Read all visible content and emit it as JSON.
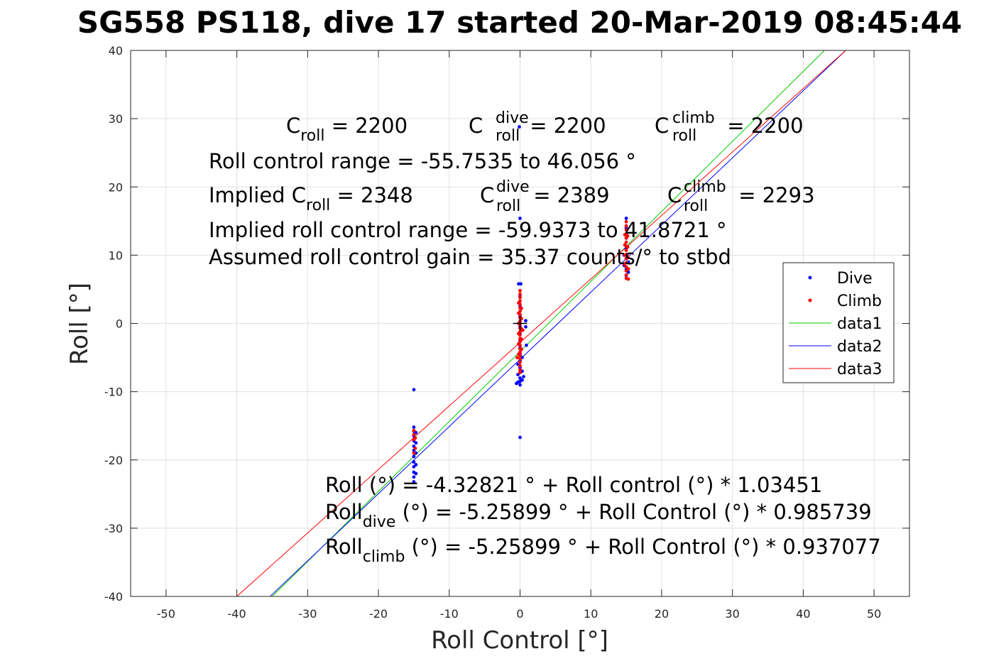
{
  "chart_data": {
    "type": "scatter",
    "title": "SG558 PS118, dive 17 started 20-Mar-2019 08:45:44",
    "xlabel": "Roll Control [°]",
    "ylabel": "Roll [°]",
    "xlim": [
      -55,
      55
    ],
    "ylim": [
      -40,
      40
    ],
    "xticks": [
      -50,
      -40,
      -30,
      -20,
      -10,
      0,
      10,
      20,
      30,
      40,
      50
    ],
    "yticks": [
      -40,
      -30,
      -20,
      -10,
      0,
      10,
      20,
      30,
      40
    ],
    "xtick_labels": [
      "-50",
      "-40",
      "-30",
      "-20",
      "-10",
      "0",
      "10",
      "20",
      "30",
      "40",
      "50"
    ],
    "ytick_labels": [
      "-40",
      "-30",
      "-20",
      "-10",
      "0",
      "10",
      "20",
      "30",
      "40"
    ],
    "grid": true,
    "legend_placement": "right",
    "colors": {
      "dive": "#0000ff",
      "climb": "#ff0000",
      "data1": "#00cc00",
      "data2": "#0000ff",
      "data3": "#ff0000"
    },
    "scatter_series": [
      {
        "name": "Dive",
        "color": "#0000ff",
        "points": [
          [
            -15,
            -9.7
          ],
          [
            -15,
            -15.2
          ],
          [
            -15,
            -15.8
          ],
          [
            -15,
            -16.5
          ],
          [
            -15,
            -17.2
          ],
          [
            -15,
            -18.0
          ],
          [
            -15,
            -18.6
          ],
          [
            -15,
            -19.5
          ],
          [
            -15,
            -20.3
          ],
          [
            -15,
            -21.0
          ],
          [
            -15,
            -21.8
          ],
          [
            -15,
            -22.5
          ],
          [
            -15,
            -23.2
          ],
          [
            -14.7,
            -16.0
          ],
          [
            -14.7,
            -17.5
          ],
          [
            -14.7,
            -19.0
          ],
          [
            -14.7,
            -20.7
          ],
          [
            -14.7,
            -22.0
          ],
          [
            -0.2,
            5.8
          ],
          [
            0.1,
            5.8
          ],
          [
            0,
            4.0
          ],
          [
            0,
            2.5
          ],
          [
            0,
            1.0
          ],
          [
            0,
            -0.5
          ],
          [
            0,
            -1.5
          ],
          [
            0,
            -2.5
          ],
          [
            0,
            -3.5
          ],
          [
            0,
            -4.5
          ],
          [
            0,
            -5.5
          ],
          [
            0,
            -6.5
          ],
          [
            0,
            -7.2
          ],
          [
            0,
            -8.0
          ],
          [
            0,
            -8.5
          ],
          [
            0,
            -9.0
          ],
          [
            -0.3,
            -6.0
          ],
          [
            -0.3,
            -7.5
          ],
          [
            -0.3,
            -8.6
          ],
          [
            0.3,
            -5.0
          ],
          [
            0.3,
            -7.0
          ],
          [
            0.3,
            -8.3
          ],
          [
            -0.5,
            -8.8
          ],
          [
            0.5,
            -7.8
          ],
          [
            0,
            15.4
          ],
          [
            0,
            -16.7
          ],
          [
            -0.1,
            28.8
          ],
          [
            0.8,
            -0.5
          ],
          [
            0.9,
            -3.2
          ],
          [
            0.8,
            0.4
          ],
          [
            15,
            15.4
          ],
          [
            15,
            14.0
          ],
          [
            15,
            12.5
          ],
          [
            15,
            11.0
          ],
          [
            15,
            9.5
          ],
          [
            15,
            8.0
          ],
          [
            15,
            7.0
          ],
          [
            14.7,
            10.0
          ],
          [
            14.7,
            8.5
          ],
          [
            15.3,
            9.0
          ],
          [
            15.3,
            7.5
          ]
        ]
      },
      {
        "name": "Climb",
        "color": "#ff0000",
        "points": [
          [
            -15,
            -15.7
          ],
          [
            -15,
            -16.3
          ],
          [
            -15,
            -17.0
          ],
          [
            -14.8,
            -16.8
          ],
          [
            -14.8,
            -18.3
          ],
          [
            -15,
            -19.0
          ],
          [
            0,
            4.8
          ],
          [
            0,
            4.3
          ],
          [
            0,
            3.8
          ],
          [
            0,
            3.3
          ],
          [
            0,
            2.8
          ],
          [
            0,
            2.3
          ],
          [
            0,
            1.8
          ],
          [
            0,
            1.3
          ],
          [
            0,
            0.8
          ],
          [
            0,
            0.3
          ],
          [
            0,
            -0.2
          ],
          [
            0,
            -0.7
          ],
          [
            0,
            -1.2
          ],
          [
            0,
            -1.7
          ],
          [
            0,
            -2.2
          ],
          [
            0,
            -2.7
          ],
          [
            0,
            -3.2
          ],
          [
            0,
            -3.7
          ],
          [
            0,
            -4.2
          ],
          [
            0,
            -4.7
          ],
          [
            0,
            -5.2
          ],
          [
            0,
            -5.7
          ],
          [
            0,
            -6.2
          ],
          [
            0,
            -6.8
          ],
          [
            0,
            -7.2
          ],
          [
            -0.2,
            3.0
          ],
          [
            -0.2,
            1.5
          ],
          [
            -0.2,
            0.0
          ],
          [
            -0.2,
            -1.5
          ],
          [
            -0.2,
            -3.0
          ],
          [
            -0.2,
            -4.5
          ],
          [
            0.2,
            2.2
          ],
          [
            0.2,
            0.7
          ],
          [
            0.2,
            -0.8
          ],
          [
            0.2,
            -2.3
          ],
          [
            0.2,
            -3.8
          ],
          [
            -0.4,
            -5.0
          ],
          [
            0.4,
            -1.0
          ],
          [
            15,
            14.9
          ],
          [
            15,
            14.3
          ],
          [
            15,
            13.7
          ],
          [
            15,
            13.1
          ],
          [
            15,
            12.5
          ],
          [
            15,
            11.9
          ],
          [
            15,
            11.3
          ],
          [
            15,
            10.7
          ],
          [
            15,
            10.1
          ],
          [
            15,
            9.5
          ],
          [
            15,
            8.9
          ],
          [
            15,
            8.3
          ],
          [
            15,
            7.7
          ],
          [
            15,
            7.1
          ],
          [
            15,
            6.6
          ],
          [
            14.8,
            13.0
          ],
          [
            14.8,
            11.5
          ],
          [
            14.8,
            10.0
          ],
          [
            15.2,
            12.8
          ],
          [
            15.2,
            11.2
          ],
          [
            15.2,
            9.8
          ],
          [
            15.3,
            8.0
          ],
          [
            14.7,
            8.7
          ],
          [
            15.3,
            6.5
          ]
        ]
      }
    ],
    "line_series": [
      {
        "name": "data1",
        "color": "#00cc00",
        "x": [
          -35,
          43
        ],
        "y": [
          -40,
          40
        ]
      },
      {
        "name": "data2",
        "color": "#0000ff",
        "x": [
          -35.3,
          46
        ],
        "y": [
          -40,
          40
        ]
      },
      {
        "name": "data3",
        "color": "#ff0000",
        "x": [
          -40,
          46
        ],
        "y": [
          -40,
          40
        ]
      }
    ],
    "crosshair": {
      "x": 0,
      "y": 0
    }
  },
  "legend": {
    "items": [
      {
        "label": "Dive",
        "kind": "dot",
        "color": "#0000ff"
      },
      {
        "label": "Climb",
        "kind": "dot",
        "color": "#ff0000"
      },
      {
        "label": "data1",
        "kind": "line",
        "color": "#00cc00"
      },
      {
        "label": "data2",
        "kind": "line",
        "color": "#0000ff"
      },
      {
        "label": "data3",
        "kind": "line",
        "color": "#ff0000"
      }
    ]
  },
  "annotations": {
    "croll": {
      "base": "C",
      "sub": "roll",
      "rest": " = 2200"
    },
    "cdive": {
      "base": "C",
      "sup": "dive",
      "sub": "roll",
      "rest": " = 2200"
    },
    "cclimb": {
      "base": "C",
      "sup": "climb",
      "sub": "roll",
      "rest": " = 2200"
    },
    "range": "Roll control range = -55.7535 to 46.056 °",
    "implied_croll": {
      "base": "Implied C",
      "sub": "roll",
      "rest": " = 2348"
    },
    "implied_cdive": {
      "base": "C",
      "sup": "dive",
      "sub": "roll",
      "rest": " = 2389"
    },
    "implied_cclimb": {
      "base": "C",
      "sup": "climb",
      "sub": "roll",
      "rest": " = 2293"
    },
    "implied_range": "Implied roll control range = -59.9373 to 41.8721 °",
    "gain": "Assumed roll control gain = 35.37 counts/° to stbd",
    "fit_all": "Roll (°) = -4.32821 ° + Roll control (°) * 1.03451",
    "fit_dive": {
      "base": "Roll",
      "sub": "dive",
      "rest": " (°) = -5.25899 ° + Roll Control (°) * 0.985739"
    },
    "fit_climb": {
      "base": "Roll",
      "sub": "climb",
      "rest": " (°) = -5.25899 ° + Roll Control (°) * 0.937077"
    }
  }
}
